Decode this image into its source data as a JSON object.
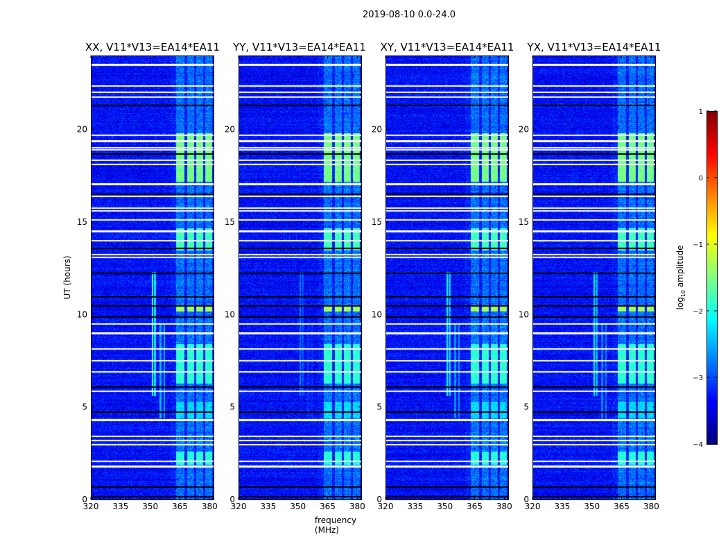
{
  "chart_data": {
    "type": "heatmap",
    "title": "2019-08-10 0.0-24.0",
    "xlabel": "frequency (MHz)",
    "ylabel": "UT (hours)",
    "xlim": [
      320,
      382
    ],
    "ylim": [
      0,
      24
    ],
    "xticks": [
      320,
      335,
      350,
      365,
      380
    ],
    "yticks": [
      0,
      5,
      10,
      15,
      20
    ],
    "colorbar": {
      "label_prefix": "log",
      "label_subscript": "10",
      "label_suffix": " amplitude",
      "range": [
        -4,
        1
      ],
      "ticks": [
        "1",
        "0",
        "−1",
        "−2",
        "−3",
        "−4"
      ],
      "colormap": "jet"
    },
    "panels": [
      {
        "title": "XX, V11*V13=EA14*EA11"
      },
      {
        "title": "YY, V11*V13=EA14*EA11"
      },
      {
        "title": "XY, V11*V13=EA14*EA11"
      },
      {
        "title": "YX, V11*V13=EA14*EA11"
      }
    ],
    "background_level": -3.35,
    "white_flag_rows_hours": [
      23.5,
      22.35,
      22.0,
      21.75,
      19.7,
      19.4,
      19.0,
      18.9,
      18.35,
      18.1,
      17.05,
      16.4,
      15.75,
      15.6,
      15.1,
      14.5,
      14.0,
      13.25,
      13.1,
      9.5,
      9.0,
      8.15,
      7.5,
      6.9,
      5.85,
      4.3,
      3.4,
      3.2,
      2.95,
      2.05,
      1.8
    ],
    "black_flag_rows_hours": [
      21.35,
      18.7,
      16.55,
      13.6,
      12.25,
      11.0,
      10.5,
      9.9,
      6.1,
      4.75,
      0.7,
      0.2
    ],
    "rfi_bands_mhz": [
      [
        363,
        367
      ],
      [
        368.5,
        372
      ],
      [
        373,
        376.5
      ],
      [
        377.5,
        381
      ]
    ],
    "rfi_episodes": [
      {
        "t_start": 17.2,
        "t_end": 19.8,
        "level": -1.55
      },
      {
        "t_start": 13.5,
        "t_end": 14.7,
        "level": -1.8
      },
      {
        "t_start": 10.2,
        "t_end": 10.45,
        "level": -1.3
      },
      {
        "t_start": 6.3,
        "t_end": 8.4,
        "level": -1.9
      },
      {
        "t_start": 4.4,
        "t_end": 5.3,
        "level": -2.3
      },
      {
        "t_start": 1.9,
        "t_end": 2.6,
        "level": -1.95
      }
    ],
    "spike_lines": [
      {
        "freq_mhz": 351.0,
        "t_start": 5.6,
        "t_end": 12.3,
        "level": -1.8
      },
      {
        "freq_mhz": 352.2,
        "t_start": 5.6,
        "t_end": 12.3,
        "level": -2.2
      },
      {
        "freq_mhz": 355.0,
        "t_start": 4.4,
        "t_end": 9.5,
        "level": -2.5
      },
      {
        "freq_mhz": 357.0,
        "t_start": 4.4,
        "t_end": 9.5,
        "level": -2.5
      }
    ]
  }
}
